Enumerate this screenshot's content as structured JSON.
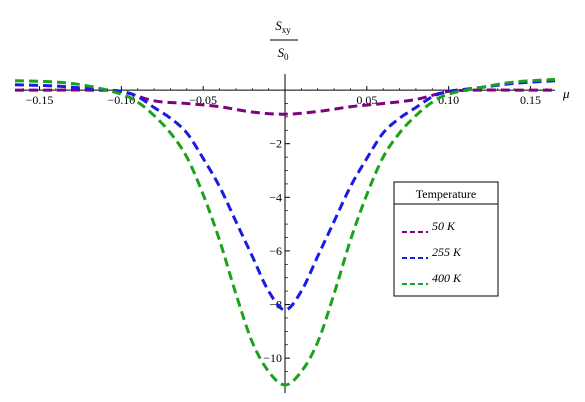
{
  "chart_data": {
    "type": "line",
    "title": "",
    "ylabel_numerator": "S",
    "ylabel_numerator_sub": "xy",
    "ylabel_denominator": "S",
    "ylabel_denominator_sub": "0",
    "xlabel": "μ",
    "xlim": [
      -0.165,
      0.165
    ],
    "ylim": [
      -11.3,
      0.6
    ],
    "x_ticks": [
      -0.15,
      -0.1,
      -0.05,
      0.05,
      0.1,
      0.15
    ],
    "x_tick_labels": [
      "−0.15",
      "−0.10",
      "−0.05",
      "0.05",
      "0.10",
      "0.15"
    ],
    "y_ticks": [
      -10,
      -8,
      -6,
      -4,
      -2
    ],
    "y_tick_labels": [
      "−10",
      "−8",
      "−6",
      "−4",
      "−2"
    ],
    "grid": false,
    "legend": {
      "title": "Temperature",
      "placement": "right",
      "entries": [
        {
          "label": "50 K",
          "color": "#800080"
        },
        {
          "label": "255 K",
          "color": "#1a1ae6"
        },
        {
          "label": "400 K",
          "color": "#1aa31a"
        }
      ]
    },
    "series": [
      {
        "name": "50 K",
        "color": "#800080",
        "x": [
          -0.165,
          -0.14,
          -0.12,
          -0.1,
          -0.08,
          -0.06,
          -0.04,
          -0.02,
          0.0,
          0.02,
          0.04,
          0.06,
          0.08,
          0.1,
          0.12,
          0.14,
          0.165
        ],
        "y": [
          0.0,
          0.0,
          0.0,
          -0.05,
          -0.4,
          -0.5,
          -0.62,
          -0.82,
          -0.9,
          -0.8,
          -0.62,
          -0.5,
          -0.35,
          -0.05,
          0.0,
          0.0,
          0.0
        ]
      },
      {
        "name": "255 K",
        "color": "#1a1ae6",
        "x": [
          -0.165,
          -0.14,
          -0.12,
          -0.1,
          -0.09,
          -0.08,
          -0.07,
          -0.06,
          -0.05,
          -0.04,
          -0.03,
          -0.02,
          -0.01,
          0.0,
          0.01,
          0.02,
          0.03,
          0.04,
          0.05,
          0.06,
          0.07,
          0.08,
          0.09,
          0.1,
          0.12,
          0.14,
          0.165
        ],
        "y": [
          0.2,
          0.15,
          0.05,
          -0.05,
          -0.25,
          -0.65,
          -1.05,
          -1.6,
          -2.55,
          -3.6,
          -4.9,
          -6.2,
          -7.5,
          -8.2,
          -7.5,
          -6.2,
          -4.9,
          -3.6,
          -2.55,
          -1.6,
          -1.05,
          -0.65,
          -0.25,
          -0.05,
          0.1,
          0.25,
          0.35
        ]
      },
      {
        "name": "400 K",
        "color": "#1aa31a",
        "x": [
          -0.165,
          -0.14,
          -0.12,
          -0.1,
          -0.09,
          -0.08,
          -0.07,
          -0.06,
          -0.05,
          -0.04,
          -0.03,
          -0.02,
          -0.01,
          0.0,
          0.01,
          0.02,
          0.03,
          0.04,
          0.05,
          0.06,
          0.07,
          0.08,
          0.09,
          0.1,
          0.12,
          0.14,
          0.165
        ],
        "y": [
          0.35,
          0.3,
          0.15,
          -0.15,
          -0.45,
          -0.95,
          -1.6,
          -2.5,
          -3.9,
          -5.6,
          -7.6,
          -9.4,
          -10.5,
          -11.0,
          -10.5,
          -9.4,
          -7.6,
          -5.6,
          -3.9,
          -2.5,
          -1.6,
          -0.95,
          -0.45,
          -0.15,
          0.1,
          0.3,
          0.4
        ]
      }
    ]
  }
}
